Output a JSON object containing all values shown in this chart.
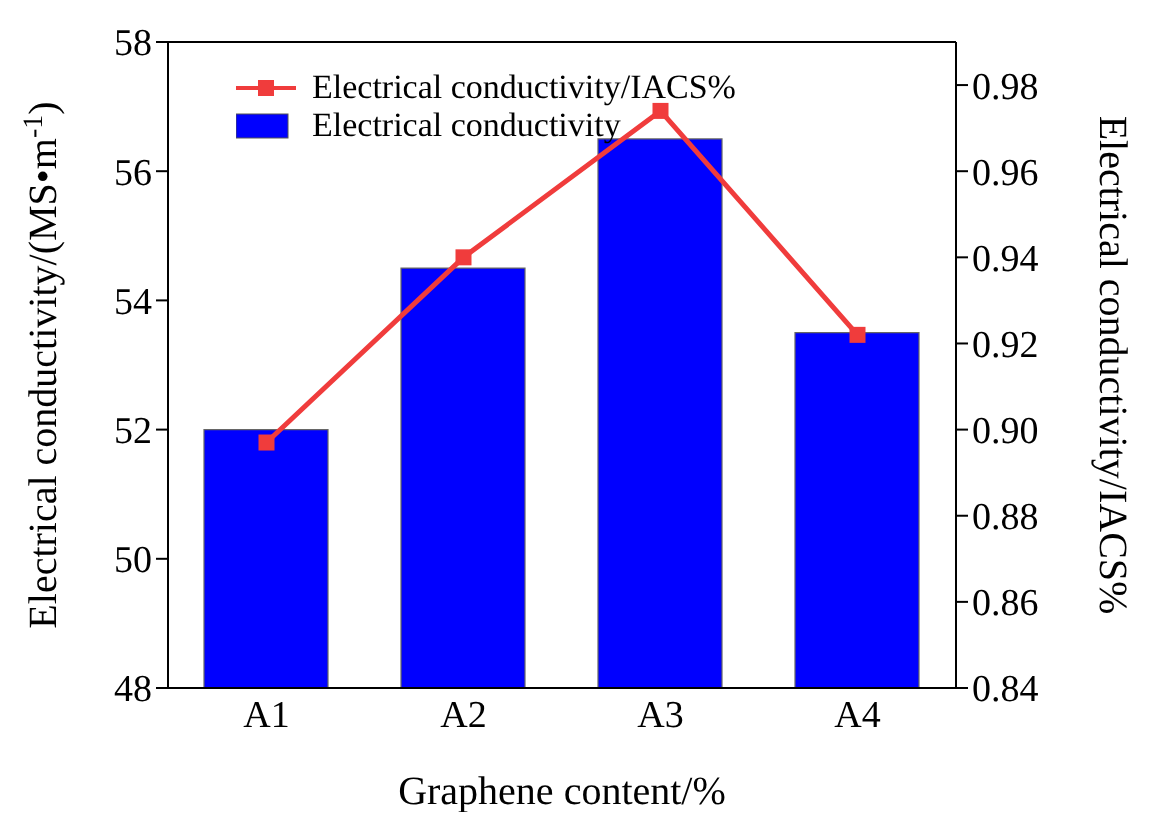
{
  "chart_data": {
    "type": "bar",
    "xlabel": "Graphene content/%",
    "ylabel": "Electrical conductivity/(MS•m$^{-1}$)",
    "y2label": "Electrical conductivity/IACS%",
    "categories": [
      "A1",
      "A2",
      "A3",
      "A4"
    ],
    "series": [
      {
        "name": "Electrical conductivity/IACS%",
        "type": "line",
        "axis": "y2",
        "color": "#f03c3c",
        "values": [
          0.897,
          0.94,
          0.974,
          0.922
        ]
      },
      {
        "name": "Electrical conductivity",
        "color": "#0000ff",
        "values": [
          52,
          54.5,
          56.5,
          53.5
        ]
      }
    ],
    "ylim": [
      48,
      58
    ],
    "yticks": [
      48,
      50,
      52,
      54,
      56,
      58
    ],
    "y2lim": [
      0.84,
      0.99
    ],
    "y2ticks": [
      0.84,
      0.86,
      0.88,
      {
        "value": 0.9,
        "label": "0.90"
      },
      0.92,
      0.94,
      0.96,
      0.98
    ],
    "legend": "top left",
    "marker": "square",
    "line_style": "solid",
    "grid": false
  }
}
